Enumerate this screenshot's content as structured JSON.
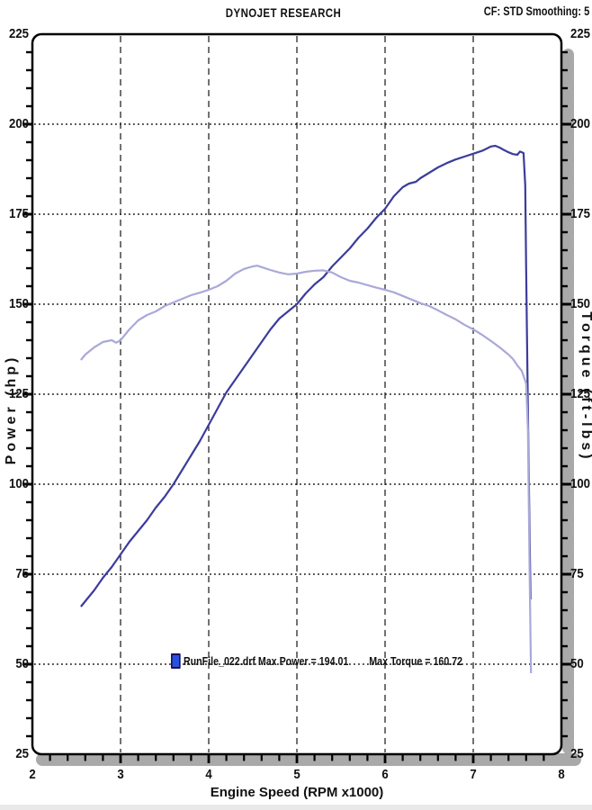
{
  "header": {
    "title": "DYNOJET RESEARCH",
    "correction": "CF: STD  Smoothing: 5"
  },
  "legend": {
    "run_power_label": "RunFile_022.drf Max Power = 194.01",
    "max_torque_label": "Max Torque = 160.72",
    "marker_color": "#2a50e0"
  },
  "colors": {
    "power_curve": "#3c3c9b",
    "torque_curve": "#a9a9d9",
    "grid": "#141414",
    "frame": "#000000",
    "shadow": "#a9a9a9",
    "text": "#111111"
  },
  "chart_data": {
    "type": "line",
    "title": "DYNOJET RESEARCH",
    "xlabel": "Engine Speed (RPM x1000)",
    "ylabel_left": "Power (hp)",
    "ylabel_right": "Torque (ft-lbs)",
    "xlim": [
      2,
      8
    ],
    "ylim": [
      25,
      225
    ],
    "x_ticks_major": [
      2,
      3,
      4,
      5,
      6,
      7,
      8
    ],
    "x_minor_step": 0.2,
    "y_ticks_major": [
      25,
      50,
      75,
      100,
      125,
      150,
      175,
      200,
      225
    ],
    "y_minor_step": 5,
    "grid": {
      "horizontal": "dotted lines at 50,75,100,125,150,175,200",
      "vertical": "dashed lines at 3,4,5,6,7",
      "legend_position": "bottom-center on 50 gridline"
    },
    "series": [
      {
        "name": "Power (hp)",
        "max": 194.01,
        "points": [
          [
            2.55,
            66
          ],
          [
            2.6,
            67.5
          ],
          [
            2.7,
            70.5
          ],
          [
            2.8,
            74
          ],
          [
            2.9,
            77
          ],
          [
            3.0,
            80.5
          ],
          [
            3.1,
            84
          ],
          [
            3.2,
            87
          ],
          [
            3.3,
            90
          ],
          [
            3.4,
            93.5
          ],
          [
            3.5,
            96.5
          ],
          [
            3.6,
            100
          ],
          [
            3.7,
            104
          ],
          [
            3.8,
            108
          ],
          [
            3.9,
            112
          ],
          [
            4.0,
            116.5
          ],
          [
            4.1,
            121
          ],
          [
            4.2,
            125.5
          ],
          [
            4.3,
            129
          ],
          [
            4.4,
            132.5
          ],
          [
            4.5,
            136
          ],
          [
            4.6,
            139.5
          ],
          [
            4.7,
            143
          ],
          [
            4.8,
            146
          ],
          [
            4.9,
            148
          ],
          [
            5.0,
            150
          ],
          [
            5.1,
            153
          ],
          [
            5.2,
            155.5
          ],
          [
            5.3,
            157.5
          ],
          [
            5.4,
            160.5
          ],
          [
            5.5,
            163
          ],
          [
            5.6,
            165.5
          ],
          [
            5.7,
            168.5
          ],
          [
            5.8,
            171
          ],
          [
            5.9,
            174
          ],
          [
            6.0,
            176.5
          ],
          [
            6.1,
            180
          ],
          [
            6.2,
            182.5
          ],
          [
            6.27,
            183.5
          ],
          [
            6.35,
            184
          ],
          [
            6.4,
            185
          ],
          [
            6.5,
            186.5
          ],
          [
            6.6,
            188
          ],
          [
            6.7,
            189.2
          ],
          [
            6.8,
            190.2
          ],
          [
            6.9,
            191
          ],
          [
            7.0,
            191.8
          ],
          [
            7.1,
            192.6
          ],
          [
            7.15,
            193.2
          ],
          [
            7.2,
            193.8
          ],
          [
            7.25,
            194
          ],
          [
            7.3,
            193.5
          ],
          [
            7.35,
            192.8
          ],
          [
            7.4,
            192.2
          ],
          [
            7.45,
            191.7
          ],
          [
            7.5,
            191.5
          ],
          [
            7.53,
            192.4
          ],
          [
            7.57,
            192
          ],
          [
            7.59,
            183
          ],
          [
            7.6,
            160
          ],
          [
            7.62,
            120
          ],
          [
            7.64,
            85
          ],
          [
            7.65,
            68
          ]
        ]
      },
      {
        "name": "Torque (ft-lbs)",
        "max": 160.72,
        "points": [
          [
            2.55,
            134.5
          ],
          [
            2.6,
            136
          ],
          [
            2.7,
            138
          ],
          [
            2.8,
            139.5
          ],
          [
            2.9,
            140
          ],
          [
            2.95,
            139.3
          ],
          [
            3.0,
            140
          ],
          [
            3.1,
            143
          ],
          [
            3.2,
            145.5
          ],
          [
            3.3,
            147
          ],
          [
            3.4,
            148
          ],
          [
            3.5,
            149.5
          ],
          [
            3.6,
            150.5
          ],
          [
            3.7,
            151.5
          ],
          [
            3.8,
            152.5
          ],
          [
            3.9,
            153.2
          ],
          [
            4.0,
            154
          ],
          [
            4.1,
            155
          ],
          [
            4.2,
            156.5
          ],
          [
            4.3,
            158.5
          ],
          [
            4.4,
            159.8
          ],
          [
            4.5,
            160.5
          ],
          [
            4.55,
            160.7
          ],
          [
            4.6,
            160.3
          ],
          [
            4.7,
            159.5
          ],
          [
            4.8,
            158.8
          ],
          [
            4.9,
            158.3
          ],
          [
            5.0,
            158.5
          ],
          [
            5.1,
            159
          ],
          [
            5.2,
            159.3
          ],
          [
            5.3,
            159.4
          ],
          [
            5.4,
            158.8
          ],
          [
            5.5,
            157.5
          ],
          [
            5.6,
            156.5
          ],
          [
            5.7,
            156
          ],
          [
            5.8,
            155.3
          ],
          [
            5.9,
            154.6
          ],
          [
            6.0,
            154
          ],
          [
            6.1,
            153.3
          ],
          [
            6.2,
            152.3
          ],
          [
            6.3,
            151.3
          ],
          [
            6.4,
            150.3
          ],
          [
            6.5,
            149.5
          ],
          [
            6.6,
            148.3
          ],
          [
            6.7,
            147
          ],
          [
            6.8,
            145.8
          ],
          [
            6.9,
            144.3
          ],
          [
            7.0,
            143
          ],
          [
            7.1,
            141.5
          ],
          [
            7.2,
            139.8
          ],
          [
            7.3,
            138
          ],
          [
            7.4,
            136
          ],
          [
            7.45,
            134.8
          ],
          [
            7.5,
            133
          ],
          [
            7.55,
            131.5
          ],
          [
            7.6,
            128
          ],
          [
            7.62,
            115
          ],
          [
            7.64,
            75
          ],
          [
            7.655,
            47.5
          ]
        ]
      }
    ]
  }
}
